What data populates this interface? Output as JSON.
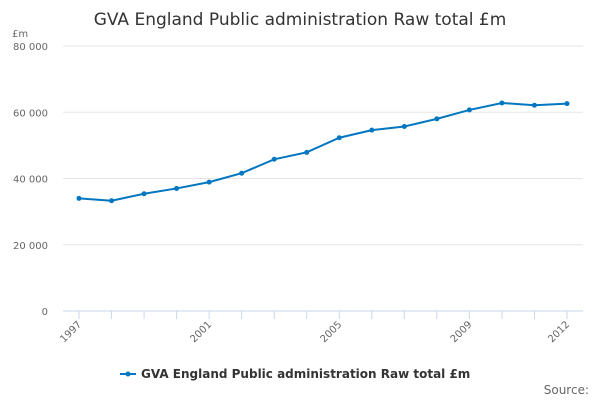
{
  "chart_data": {
    "type": "line",
    "title": "GVA England Public administration Raw total £m",
    "ylabel": "£m",
    "xlabel": "",
    "ylim": [
      0,
      80000
    ],
    "yticks": [
      0,
      20000,
      40000,
      60000,
      80000
    ],
    "ytick_labels": [
      "0",
      "20 000",
      "40 000",
      "60 000",
      "80 000"
    ],
    "x": [
      1997,
      1998,
      1999,
      2000,
      2001,
      2002,
      2003,
      2004,
      2005,
      2006,
      2007,
      2008,
      2009,
      2010,
      2011,
      2012
    ],
    "xtick_labels": [
      "1997",
      "2001",
      "2005",
      "2009",
      "2012"
    ],
    "series": [
      {
        "name": "GVA England Public administration Raw total £m",
        "color": "#0077c0",
        "values": [
          34000,
          33300,
          35400,
          37000,
          38900,
          41600,
          45800,
          47900,
          52300,
          54600,
          55700,
          58000,
          60700,
          62800,
          62100,
          62600
        ]
      }
    ],
    "legend": "bottom-center",
    "grid": true,
    "source_label": "Source:"
  }
}
